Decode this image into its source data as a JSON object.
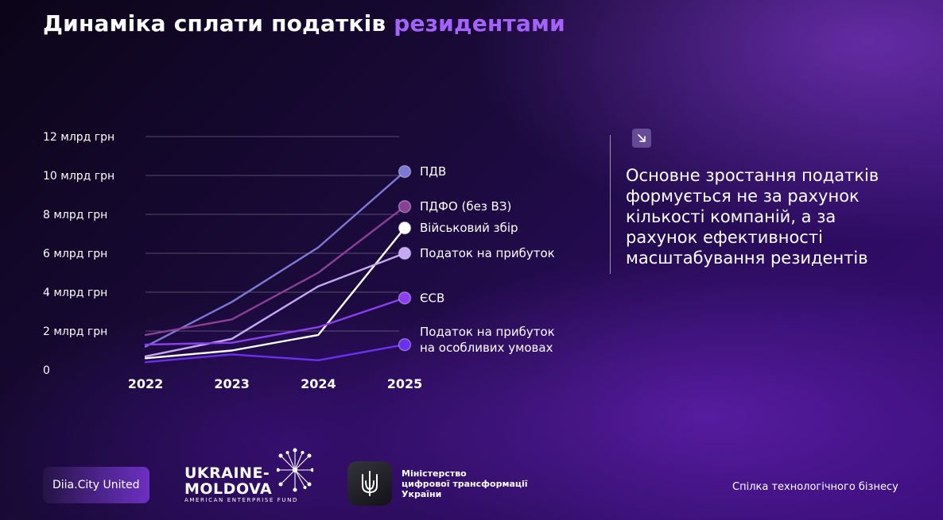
{
  "title": {
    "main": "Динаміка сплати податків",
    "accent": "резидентами"
  },
  "chart_data": {
    "type": "line",
    "title": "Динаміка сплати податків резидентами",
    "xlabel": "",
    "ylabel": "",
    "x": [
      "2022",
      "2023",
      "2024",
      "2025"
    ],
    "y_ticks": [
      "0",
      "2 млрд грн",
      "4 млрд грн",
      "6 млрд грн",
      "8 млрд грн",
      "10 млрд грн",
      "12 млрд грн"
    ],
    "y_tick_values": [
      0,
      2,
      4,
      6,
      8,
      10,
      12
    ],
    "ylim": [
      0,
      12
    ],
    "grid": true,
    "legend_placement": "right of line endpoints",
    "series": [
      {
        "name": "ПДВ",
        "values": [
          1.2,
          3.5,
          6.3,
          10.2
        ],
        "color": "#7d78d6"
      },
      {
        "name": "ПДФО (без ВЗ)",
        "values": [
          1.8,
          2.6,
          5.0,
          8.4
        ],
        "color": "#8a3f96"
      },
      {
        "name": "Військовий збір",
        "values": [
          0.6,
          1.0,
          1.8,
          7.3
        ],
        "color": "#ffffff"
      },
      {
        "name": "Податок на прибуток",
        "values": [
          0.7,
          1.6,
          4.3,
          6.0
        ],
        "color": "#c6a8f6"
      },
      {
        "name": "ЄСВ",
        "values": [
          1.3,
          1.4,
          2.2,
          3.7
        ],
        "color": "#8b3ff0"
      },
      {
        "name": "Податок на прибуток на особливих умовах",
        "label_lines": [
          "Податок на прибуток",
          "на особливих умовах"
        ],
        "values": [
          0.4,
          0.8,
          0.5,
          1.3
        ],
        "color": "#6a2ff0"
      }
    ]
  },
  "insight": {
    "icon": "arrow-down-right-icon",
    "text": "Основне зростання податків\nформується не за рахунок\nкількості компаній, а за\nрахунок ефективності\nмасштабування резидентів"
  },
  "footer": {
    "diia": "Diia.City United",
    "um_title": "UKRAINE-\nMOLDOVA",
    "um_subtitle": "AMERICAN ENTERPRISE FUND",
    "ministry": "Міністерство\nцифрової трансформації\nУкраїни",
    "union": "Спілка технологічного бізнесу"
  },
  "colors": {
    "accent": "#a463ff",
    "background": "#1a0a3a"
  }
}
